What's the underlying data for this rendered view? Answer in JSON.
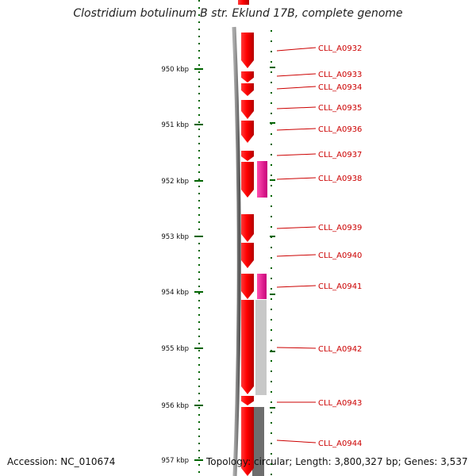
{
  "title": "Clostridium botulinum B str. Eklund 17B, complete genome",
  "accession": "Accession: NC_010674",
  "topology": "Topology: circular; Length: 3,800,327 bp; Genes: 3,537",
  "colors": {
    "cds": "#ff0000",
    "rna": "#ff1493",
    "backbone": "#8a8a8a",
    "tick": "#006400",
    "label": "#cc0000",
    "gc_light": "#c8c8c8",
    "gc_dark": "#6e6e6e"
  },
  "scale_labels": [
    "950 kbp",
    "951 kbp",
    "952 kbp",
    "953 kbp",
    "954 kbp",
    "955 kbp",
    "956 kbp",
    "957 kbp"
  ],
  "genes": [
    {
      "label": "CLL_A0932",
      "type": "cds"
    },
    {
      "label": "CLL_A0933",
      "type": "cds"
    },
    {
      "label": "CLL_A0934",
      "type": "cds"
    },
    {
      "label": "CLL_A0935",
      "type": "cds"
    },
    {
      "label": "CLL_A0936",
      "type": "cds"
    },
    {
      "label": "CLL_A0937",
      "type": "cds"
    },
    {
      "label": "CLL_A0938",
      "type": "cds"
    },
    {
      "label": "CLL_A0939",
      "type": "cds"
    },
    {
      "label": "CLL_A0940",
      "type": "cds"
    },
    {
      "label": "CLL_A0941",
      "type": "cds"
    },
    {
      "label": "CLL_A0942",
      "type": "cds"
    },
    {
      "label": "CLL_A0943",
      "type": "cds"
    },
    {
      "label": "CLL_A0944",
      "type": "cds"
    }
  ]
}
